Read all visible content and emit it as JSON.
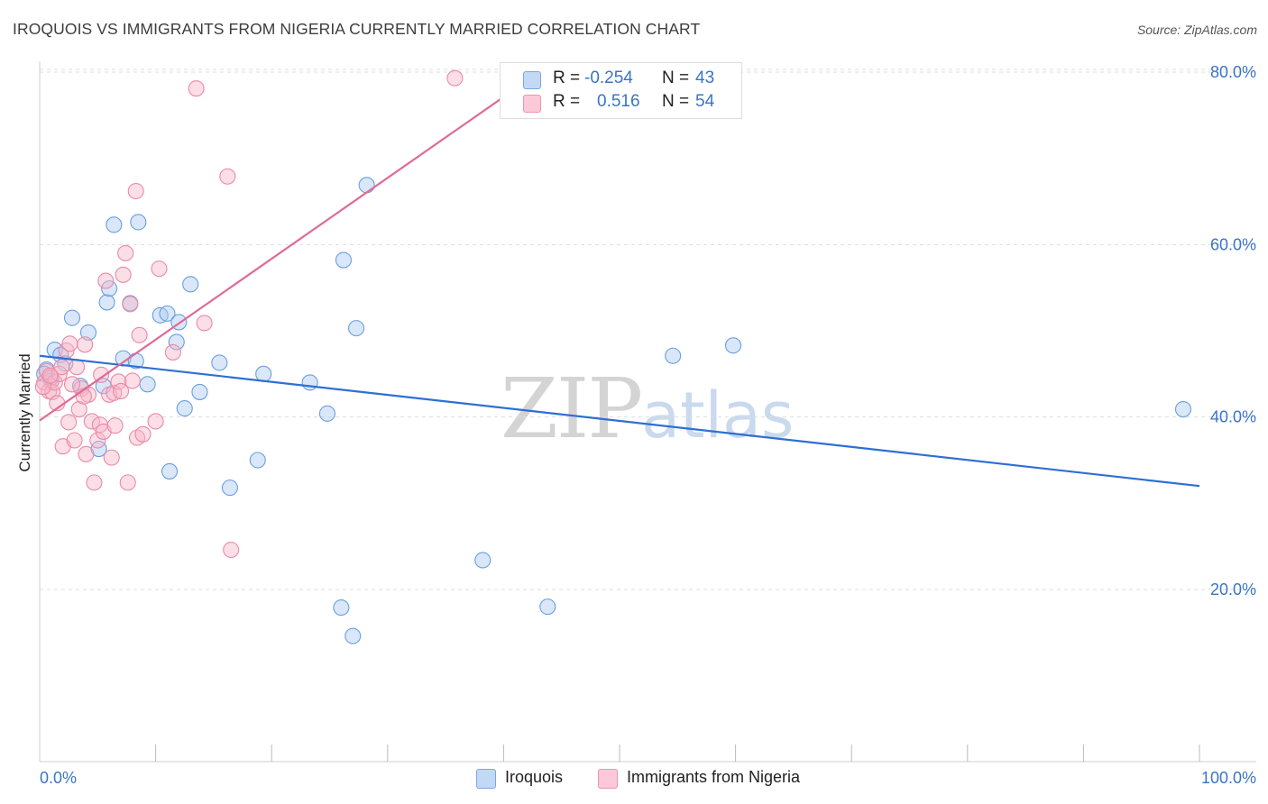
{
  "header": {
    "title": "IROQUOIS VS IMMIGRANTS FROM NIGERIA CURRENTLY MARRIED CORRELATION CHART",
    "source": "Source: ZipAtlas.com"
  },
  "watermark": {
    "zip": "ZIP",
    "atlas": "atlas"
  },
  "legend": {
    "rows": [
      {
        "r_label": "R =",
        "r_value": "-0.254",
        "n_label": "N =",
        "n_value": "43"
      },
      {
        "r_label": "R =",
        "r_value": "0.516",
        "n_label": "N =",
        "n_value": "54"
      }
    ]
  },
  "colors": {
    "blue_fill": "#aac9f0",
    "blue_stroke": "#6a9fe0",
    "blue_line": "#2d6fd4",
    "pink_fill": "#f7b5c8",
    "pink_stroke": "#ea8aa8",
    "pink_line": "#e06a96",
    "grid": "#dddddd",
    "axis_text": "#3a75c4"
  },
  "chart_data": {
    "type": "scatter",
    "title": "IROQUOIS VS IMMIGRANTS FROM NIGERIA CURRENTLY MARRIED CORRELATION CHART",
    "xlabel": "",
    "ylabel": "Currently Married",
    "xlim": [
      0,
      100
    ],
    "ylim": [
      0,
      83
    ],
    "x_tick_labels": [
      {
        "value": 0,
        "label": "0.0%"
      },
      {
        "value": 100,
        "label": "100.0%"
      }
    ],
    "y_tick_labels": [
      {
        "value": 20,
        "label": "20.0%"
      },
      {
        "value": 40,
        "label": "40.0%"
      },
      {
        "value": 60,
        "label": "60.0%"
      },
      {
        "value": 80,
        "label": "80.0%"
      }
    ],
    "x_minor_ticks": [
      10,
      20,
      30,
      40,
      50,
      60,
      70,
      80,
      90,
      100
    ],
    "grid": true,
    "legend_placement": "top-center",
    "series": [
      {
        "name": "Iroquois",
        "color": "blue",
        "R": -0.254,
        "N": 43,
        "trend": {
          "x": [
            0,
            100
          ],
          "y": [
            47.1,
            32.0
          ]
        },
        "points": [
          [
            0.6,
            45.5
          ],
          [
            1.3,
            47.8
          ],
          [
            1.8,
            47.2
          ],
          [
            2.2,
            46.2
          ],
          [
            2.8,
            51.5
          ],
          [
            3.5,
            43.6
          ],
          [
            4.2,
            49.8
          ],
          [
            5.1,
            36.3
          ],
          [
            5.5,
            43.6
          ],
          [
            5.8,
            53.3
          ],
          [
            6.0,
            54.9
          ],
          [
            6.4,
            62.3
          ],
          [
            7.2,
            46.8
          ],
          [
            7.8,
            53.2
          ],
          [
            8.3,
            46.5
          ],
          [
            8.5,
            62.6
          ],
          [
            9.3,
            43.8
          ],
          [
            10.4,
            51.8
          ],
          [
            11.0,
            52.0
          ],
          [
            11.2,
            33.7
          ],
          [
            11.8,
            48.7
          ],
          [
            12.0,
            51.0
          ],
          [
            12.5,
            41.0
          ],
          [
            13.0,
            55.4
          ],
          [
            13.8,
            42.9
          ],
          [
            15.5,
            46.3
          ],
          [
            16.4,
            31.8
          ],
          [
            18.8,
            35.0
          ],
          [
            19.3,
            45.0
          ],
          [
            23.3,
            44.0
          ],
          [
            24.8,
            40.4
          ],
          [
            26.0,
            17.9
          ],
          [
            26.2,
            58.2
          ],
          [
            27.0,
            14.6
          ],
          [
            27.3,
            50.3
          ],
          [
            28.2,
            66.9
          ],
          [
            38.2,
            23.4
          ],
          [
            43.8,
            18.0
          ],
          [
            54.6,
            47.1
          ],
          [
            59.8,
            48.3
          ],
          [
            98.6,
            40.9
          ],
          [
            0.4,
            45.0
          ],
          [
            1.0,
            44.2
          ]
        ]
      },
      {
        "name": "Immigrants from Nigeria",
        "color": "pink",
        "R": 0.516,
        "N": 54,
        "trend": {
          "x": [
            0,
            40.2
          ],
          "y": [
            39.6,
            77.3
          ]
        },
        "points": [
          [
            0.4,
            44.0
          ],
          [
            0.6,
            45.3
          ],
          [
            0.8,
            43.0
          ],
          [
            1.0,
            44.6
          ],
          [
            1.1,
            42.9
          ],
          [
            1.3,
            44.0
          ],
          [
            1.5,
            41.6
          ],
          [
            1.7,
            45.0
          ],
          [
            2.0,
            36.6
          ],
          [
            2.3,
            47.7
          ],
          [
            2.5,
            39.4
          ],
          [
            2.6,
            48.5
          ],
          [
            3.0,
            37.3
          ],
          [
            3.2,
            45.8
          ],
          [
            3.4,
            40.9
          ],
          [
            3.6,
            43.3
          ],
          [
            3.9,
            48.4
          ],
          [
            4.0,
            35.7
          ],
          [
            4.2,
            42.6
          ],
          [
            4.5,
            39.5
          ],
          [
            4.7,
            32.4
          ],
          [
            5.0,
            37.3
          ],
          [
            5.2,
            39.1
          ],
          [
            5.3,
            44.9
          ],
          [
            5.5,
            38.3
          ],
          [
            5.7,
            55.8
          ],
          [
            6.0,
            42.6
          ],
          [
            6.2,
            35.3
          ],
          [
            6.4,
            42.8
          ],
          [
            6.5,
            39.0
          ],
          [
            6.8,
            44.1
          ],
          [
            7.0,
            43.0
          ],
          [
            7.2,
            56.5
          ],
          [
            7.4,
            59.0
          ],
          [
            7.6,
            32.4
          ],
          [
            7.8,
            53.1
          ],
          [
            8.0,
            44.2
          ],
          [
            8.3,
            66.2
          ],
          [
            8.4,
            37.6
          ],
          [
            8.6,
            49.5
          ],
          [
            8.9,
            38.0
          ],
          [
            10.0,
            39.5
          ],
          [
            10.3,
            57.2
          ],
          [
            11.5,
            47.5
          ],
          [
            13.5,
            78.1
          ],
          [
            14.2,
            50.9
          ],
          [
            16.2,
            67.9
          ],
          [
            16.5,
            24.6
          ],
          [
            35.8,
            79.3
          ],
          [
            0.3,
            43.5
          ],
          [
            1.9,
            45.8
          ],
          [
            2.8,
            43.8
          ],
          [
            3.8,
            42.4
          ],
          [
            0.9,
            44.8
          ]
        ]
      }
    ]
  }
}
